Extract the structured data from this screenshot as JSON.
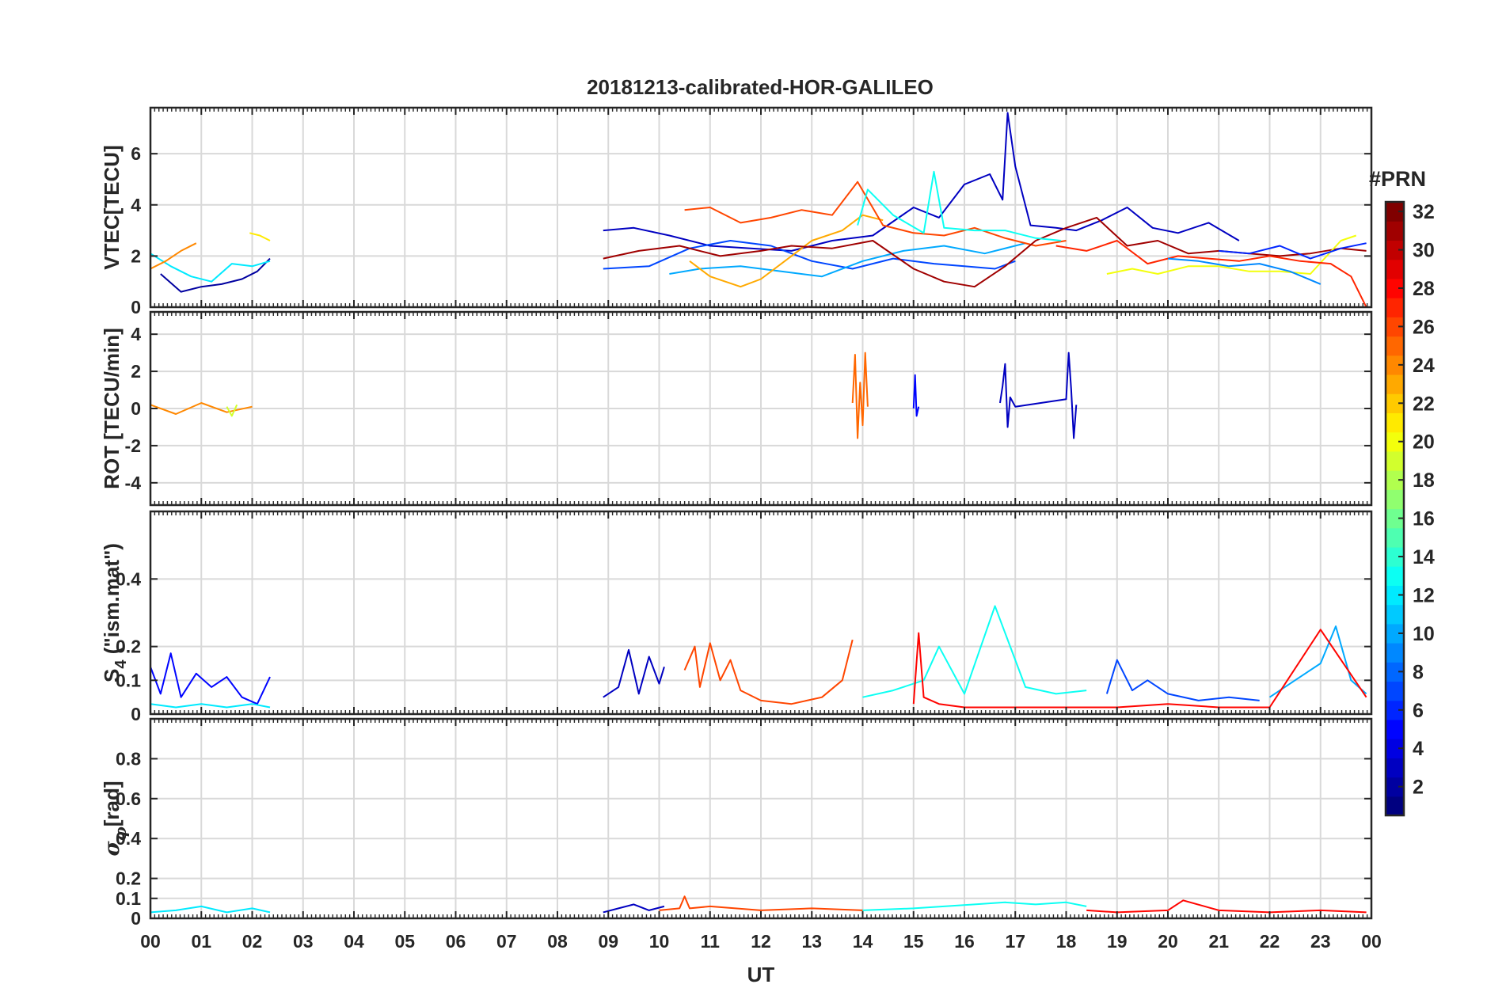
{
  "chart_data": [
    {
      "type": "line",
      "panel_id": "vtec",
      "title": "20181213-calibrated-HOR-GALILEO",
      "ylabel": "VTEC[TECU]",
      "ylim": [
        0,
        7.8
      ],
      "yticks": [
        0,
        2,
        4,
        6
      ],
      "grid": true,
      "series": [
        {
          "name": "PRN 2",
          "prn": 2,
          "x": [
            0.2,
            0.6,
            1.0,
            1.4,
            1.8,
            2.1,
            2.35
          ],
          "y": [
            1.3,
            0.6,
            0.8,
            0.9,
            1.1,
            1.4,
            1.9
          ]
        },
        {
          "name": "PRN 12",
          "prn": 12,
          "x": [
            0.0,
            0.4,
            0.8,
            1.2,
            1.6,
            2.0,
            2.35
          ],
          "y": [
            2.1,
            1.6,
            1.2,
            1.0,
            1.7,
            1.6,
            1.8
          ]
        },
        {
          "name": "PRN 24",
          "prn": 24,
          "x": [
            0.0,
            0.3,
            0.6,
            0.9
          ],
          "y": [
            1.5,
            1.8,
            2.2,
            2.5
          ]
        },
        {
          "name": "PRN 21",
          "prn": 21,
          "x": [
            1.95,
            2.15,
            2.35
          ],
          "y": [
            2.9,
            2.8,
            2.6
          ]
        },
        {
          "name": "PRN 3",
          "prn": 3,
          "x": [
            8.9,
            9.5,
            10.2,
            11.0,
            11.8,
            12.6,
            13.4,
            14.2,
            15.0,
            15.5,
            16.0,
            16.5,
            16.75,
            16.85,
            17.0,
            17.3,
            17.8,
            18.2,
            18.7,
            19.2,
            19.7,
            20.2,
            20.8,
            21.4
          ],
          "y": [
            3.0,
            3.1,
            2.8,
            2.4,
            2.3,
            2.2,
            2.6,
            2.8,
            3.9,
            3.5,
            4.8,
            5.2,
            4.2,
            7.6,
            5.5,
            3.2,
            3.1,
            3.0,
            3.4,
            3.9,
            3.1,
            2.9,
            3.3,
            2.6
          ]
        },
        {
          "name": "PRN 7",
          "prn": 7,
          "x": [
            8.9,
            9.8,
            10.6,
            11.4,
            12.2,
            13.0,
            13.8,
            14.6,
            15.4,
            16.0,
            16.6,
            17.0
          ],
          "y": [
            1.5,
            1.6,
            2.3,
            2.6,
            2.4,
            1.8,
            1.5,
            1.9,
            1.7,
            1.6,
            1.5,
            1.8
          ]
        },
        {
          "name": "PRN 10",
          "prn": 10,
          "x": [
            10.2,
            10.8,
            11.6,
            12.4,
            13.2,
            14.0,
            14.8,
            15.6,
            16.4,
            17.2
          ],
          "y": [
            1.3,
            1.5,
            1.6,
            1.4,
            1.2,
            1.8,
            2.2,
            2.4,
            2.1,
            2.5
          ]
        },
        {
          "name": "PRN 23",
          "prn": 23,
          "x": [
            10.6,
            11.0,
            11.6,
            12.0,
            12.6,
            13.0,
            13.6,
            14.0,
            14.4
          ],
          "y": [
            1.8,
            1.2,
            0.8,
            1.1,
            2.0,
            2.6,
            3.0,
            3.6,
            3.4
          ]
        },
        {
          "name": "PRN 26",
          "prn": 26,
          "x": [
            10.5,
            11.0,
            11.6,
            12.2,
            12.8,
            13.4,
            13.9,
            14.4,
            15.0,
            15.6,
            16.2,
            16.8,
            17.4,
            18.0
          ],
          "y": [
            3.8,
            3.9,
            3.3,
            3.5,
            3.8,
            3.6,
            4.9,
            3.2,
            2.9,
            2.8,
            3.1,
            2.7,
            2.4,
            2.6
          ]
        },
        {
          "name": "PRN 31",
          "prn": 31,
          "x": [
            8.9,
            9.6,
            10.4,
            11.2,
            12.0,
            12.6,
            13.4,
            14.2,
            15.0,
            15.6,
            16.2,
            16.8,
            17.4,
            18.0,
            18.6,
            19.2,
            19.8,
            20.4,
            21.0,
            21.6,
            22.2,
            22.8,
            23.4,
            23.9
          ],
          "y": [
            1.9,
            2.2,
            2.4,
            2.0,
            2.2,
            2.4,
            2.3,
            2.6,
            1.5,
            1.0,
            0.8,
            1.6,
            2.6,
            3.1,
            3.5,
            2.4,
            2.6,
            2.1,
            2.2,
            2.1,
            2.0,
            2.1,
            2.3,
            2.2
          ]
        },
        {
          "name": "PRN 13",
          "prn": 13,
          "x": [
            13.9,
            14.1,
            14.6,
            15.2,
            15.4,
            15.6,
            16.2,
            16.8,
            17.4,
            17.9
          ],
          "y": [
            3.2,
            4.6,
            3.6,
            2.9,
            5.3,
            3.1,
            3.0,
            3.0,
            2.7,
            2.6
          ]
        },
        {
          "name": "PRN 20",
          "prn": 20,
          "x": [
            18.8,
            19.3,
            19.8,
            20.4,
            21.0,
            21.6,
            22.2,
            22.8,
            23.4,
            23.7
          ],
          "y": [
            1.3,
            1.5,
            1.3,
            1.6,
            1.6,
            1.4,
            1.4,
            1.3,
            2.6,
            2.8
          ]
        },
        {
          "name": "PRN 27",
          "prn": 27,
          "x": [
            17.8,
            18.4,
            19.0,
            19.6,
            20.2,
            20.8,
            21.4,
            22.0,
            22.6,
            23.2,
            23.6,
            23.9
          ],
          "y": [
            2.4,
            2.2,
            2.6,
            1.7,
            2.0,
            1.9,
            1.8,
            2.0,
            1.8,
            1.7,
            1.2,
            0.0
          ]
        },
        {
          "name": "PRN 6",
          "prn": 6,
          "x": [
            21.0,
            21.6,
            22.2,
            22.8,
            23.4,
            23.9
          ],
          "y": [
            2.2,
            2.1,
            2.4,
            1.9,
            2.3,
            2.5
          ]
        },
        {
          "name": "PRN 9",
          "prn": 9,
          "x": [
            20.0,
            20.6,
            21.2,
            21.8,
            22.4,
            23.0
          ],
          "y": [
            1.9,
            1.8,
            1.6,
            1.7,
            1.4,
            0.9
          ]
        }
      ]
    },
    {
      "type": "line",
      "panel_id": "rot",
      "ylabel": "ROT [TECU/min]",
      "ylim": [
        -5.2,
        5.2
      ],
      "yticks": [
        -4,
        -2,
        0,
        2,
        4
      ],
      "grid": true,
      "series": [
        {
          "name": "PRN 3",
          "prn": 3,
          "x": [
            16.7,
            16.75,
            16.8,
            16.85,
            16.9,
            17.0,
            18.0,
            18.05,
            18.1,
            18.15,
            18.2
          ],
          "y": [
            0.3,
            1.2,
            2.4,
            -1.0,
            0.6,
            0.1,
            0.5,
            3.0,
            1.0,
            -1.6,
            0.2
          ]
        },
        {
          "name": "PRN 5",
          "prn": 5,
          "x": [
            15.0,
            15.03,
            15.06,
            15.1
          ],
          "y": [
            0.0,
            1.8,
            -0.4,
            0.1
          ]
        },
        {
          "name": "PRN 25",
          "prn": 25,
          "x": [
            13.8,
            13.85,
            13.9,
            13.95,
            14.0,
            14.05,
            14.1
          ],
          "y": [
            0.3,
            2.9,
            -1.6,
            1.4,
            -0.9,
            3.0,
            0.1
          ]
        },
        {
          "name": "PRN 24",
          "prn": 24,
          "x": [
            0.0,
            0.5,
            1.0,
            1.5,
            2.0
          ],
          "y": [
            0.2,
            -0.3,
            0.3,
            -0.2,
            0.1
          ]
        },
        {
          "name": "PRN 19",
          "prn": 19,
          "x": [
            1.5,
            1.6,
            1.7
          ],
          "y": [
            0.1,
            -0.4,
            0.2
          ]
        }
      ]
    },
    {
      "type": "line",
      "panel_id": "s4",
      "ylabel": "S4 (\"ism.mat\")",
      "ylabel_main": "S",
      "ylabel_sub": "4",
      "ylabel_rest": " (\"ism.mat\")",
      "ylim": [
        0,
        0.6
      ],
      "yticks": [
        0,
        0.1,
        0.2,
        0.4
      ],
      "grid": true,
      "series": [
        {
          "name": "PRN 3",
          "prn": 3,
          "x": [
            8.9,
            9.2,
            9.4,
            9.6,
            9.8,
            10.0,
            10.1
          ],
          "y": [
            0.05,
            0.08,
            0.19,
            0.06,
            0.17,
            0.09,
            0.14
          ]
        },
        {
          "name": "PRN 26",
          "prn": 26,
          "x": [
            10.5,
            10.7,
            10.8,
            11.0,
            11.2,
            11.4,
            11.6,
            12.0,
            12.6,
            13.2,
            13.6,
            13.8
          ],
          "y": [
            0.13,
            0.2,
            0.08,
            0.21,
            0.1,
            0.16,
            0.07,
            0.04,
            0.03,
            0.05,
            0.1,
            0.22
          ]
        },
        {
          "name": "PRN 13",
          "prn": 13,
          "x": [
            14.0,
            14.6,
            15.2,
            15.5,
            16.0,
            16.6,
            17.2,
            17.8,
            18.4
          ],
          "y": [
            0.05,
            0.07,
            0.1,
            0.2,
            0.06,
            0.32,
            0.08,
            0.06,
            0.07
          ]
        },
        {
          "name": "PRN 7",
          "prn": 7,
          "x": [
            18.8,
            19.0,
            19.3,
            19.6,
            20.0,
            20.6,
            21.2,
            21.8
          ],
          "y": [
            0.06,
            0.16,
            0.07,
            0.1,
            0.06,
            0.04,
            0.05,
            0.04
          ]
        },
        {
          "name": "PRN 10",
          "prn": 10,
          "x": [
            22.0,
            22.5,
            23.0,
            23.3,
            23.6,
            23.9
          ],
          "y": [
            0.05,
            0.1,
            0.15,
            0.26,
            0.1,
            0.06
          ]
        },
        {
          "name": "PRN 28",
          "prn": 28,
          "x": [
            15.0,
            15.1,
            15.2,
            15.5,
            16.0,
            17.0,
            18.0,
            19.0,
            20.0,
            21.0,
            22.0,
            23.0,
            23.9
          ],
          "y": [
            0.03,
            0.24,
            0.05,
            0.03,
            0.02,
            0.02,
            0.02,
            0.02,
            0.03,
            0.02,
            0.02,
            0.25,
            0.05
          ]
        },
        {
          "name": "PRN 5",
          "prn": 5,
          "x": [
            0.0,
            0.2,
            0.4,
            0.6,
            0.9,
            1.2,
            1.5,
            1.8,
            2.1,
            2.35
          ],
          "y": [
            0.14,
            0.06,
            0.18,
            0.05,
            0.12,
            0.08,
            0.11,
            0.05,
            0.03,
            0.11
          ]
        },
        {
          "name": "PRN 12",
          "prn": 12,
          "x": [
            0.0,
            0.5,
            1.0,
            1.5,
            2.0,
            2.35
          ],
          "y": [
            0.03,
            0.02,
            0.03,
            0.02,
            0.03,
            0.02
          ]
        }
      ]
    },
    {
      "type": "line",
      "panel_id": "sigma",
      "ylabel": "σφ[rad]",
      "ylabel_main": "σ",
      "ylabel_sub": "φ",
      "ylabel_rest": "[rad]",
      "ylim": [
        0,
        1.0
      ],
      "yticks": [
        0,
        0.1,
        0.2,
        0.4,
        0.6,
        0.8
      ],
      "xlabel": "UT",
      "xticks": [
        "00",
        "01",
        "02",
        "03",
        "04",
        "05",
        "06",
        "07",
        "08",
        "09",
        "10",
        "11",
        "12",
        "13",
        "14",
        "15",
        "16",
        "17",
        "18",
        "19",
        "20",
        "21",
        "22",
        "23",
        "00"
      ],
      "xlim": [
        0,
        24
      ],
      "grid": true,
      "series": [
        {
          "name": "PRN 12",
          "prn": 12,
          "x": [
            0.0,
            0.5,
            1.0,
            1.5,
            2.0,
            2.35
          ],
          "y": [
            0.03,
            0.04,
            0.06,
            0.03,
            0.05,
            0.03
          ]
        },
        {
          "name": "PRN 3",
          "prn": 3,
          "x": [
            8.9,
            9.2,
            9.5,
            9.8,
            10.1
          ],
          "y": [
            0.03,
            0.05,
            0.07,
            0.04,
            0.06
          ]
        },
        {
          "name": "PRN 26",
          "prn": 26,
          "x": [
            10.0,
            10.4,
            10.5,
            10.6,
            11.0,
            12.0,
            13.0,
            14.0
          ],
          "y": [
            0.04,
            0.05,
            0.11,
            0.05,
            0.06,
            0.04,
            0.05,
            0.04
          ]
        },
        {
          "name": "PRN 13",
          "prn": 13,
          "x": [
            14.0,
            15.0,
            15.6,
            16.2,
            16.8,
            17.4,
            18.0,
            18.4
          ],
          "y": [
            0.04,
            0.05,
            0.06,
            0.07,
            0.08,
            0.07,
            0.08,
            0.06
          ]
        },
        {
          "name": "PRN 28",
          "prn": 28,
          "x": [
            18.4,
            19.0,
            20.0,
            20.3,
            21.0,
            22.0,
            23.0,
            23.9
          ],
          "y": [
            0.04,
            0.03,
            0.04,
            0.09,
            0.04,
            0.03,
            0.04,
            0.03
          ]
        }
      ]
    }
  ],
  "colorbar": {
    "label": "#PRN",
    "min": 1,
    "max": 32,
    "ticks": [
      2,
      4,
      6,
      8,
      10,
      12,
      14,
      16,
      18,
      20,
      22,
      24,
      26,
      28,
      30,
      32
    ],
    "colormap": "jet"
  },
  "colors": {
    "grid": "#d9d9d9",
    "axis": "#262626",
    "background": "#ffffff"
  }
}
